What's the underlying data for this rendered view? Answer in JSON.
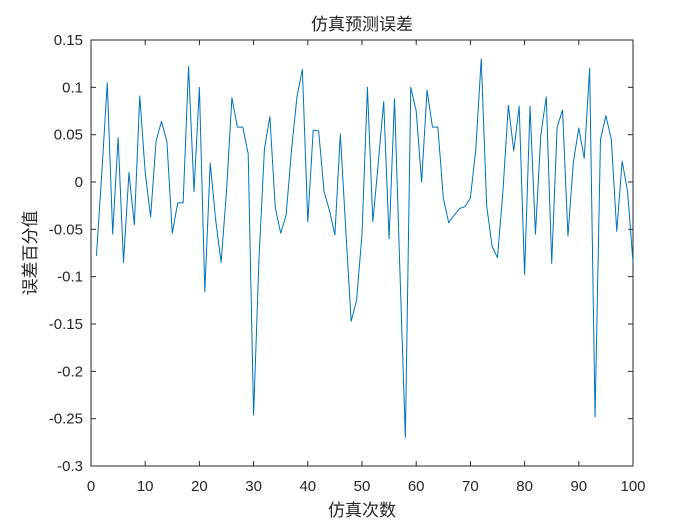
{
  "chart_data": {
    "type": "line",
    "title": "仿真预测误差",
    "xlabel": "仿真次数",
    "ylabel": "误差百分值",
    "xlim": [
      0,
      100
    ],
    "ylim": [
      -0.3,
      0.15
    ],
    "xticks": [
      0,
      10,
      20,
      30,
      40,
      50,
      60,
      70,
      80,
      90,
      100
    ],
    "yticks": [
      0.15,
      0.1,
      0.05,
      0,
      -0.05,
      -0.1,
      -0.15,
      -0.2,
      -0.25,
      -0.3
    ],
    "ytick_labels": [
      "0.15",
      "0.1",
      "0.05",
      "0",
      "-0.05",
      "-0.1",
      "-0.15",
      "-0.2",
      "-0.25",
      "-0.3"
    ],
    "xtick_labels": [
      "0",
      "10",
      "20",
      "30",
      "40",
      "50",
      "60",
      "70",
      "80",
      "90",
      "100"
    ],
    "grid": false,
    "line_color": "#0072BD",
    "series": [
      {
        "x": [
          1,
          2,
          3,
          4,
          5,
          6,
          7,
          8,
          9,
          10,
          11,
          12,
          13,
          14,
          15,
          16,
          17,
          18,
          19,
          20,
          21,
          22,
          23,
          24,
          25,
          26,
          27,
          28,
          29,
          30,
          31,
          32,
          33,
          34,
          35,
          36,
          37,
          38,
          39,
          40,
          41,
          42,
          43,
          44,
          45,
          46,
          47,
          48,
          49,
          50,
          51,
          52,
          53,
          54,
          55,
          56,
          57,
          58,
          59,
          60,
          61,
          62,
          63,
          64,
          65,
          66,
          67,
          68,
          69,
          70,
          71,
          72,
          73,
          74,
          75,
          76,
          77,
          78,
          79,
          80,
          81,
          82,
          83,
          84,
          85,
          86,
          87,
          88,
          89,
          90,
          91,
          92,
          93,
          94,
          95,
          96,
          97,
          98,
          99,
          100
        ],
        "values": [
          -0.078,
          0.01,
          0.105,
          -0.055,
          0.047,
          -0.085,
          0.01,
          -0.045,
          0.091,
          0.01,
          -0.037,
          0.043,
          0.064,
          0.043,
          -0.054,
          -0.022,
          -0.022,
          0.122,
          -0.01,
          0.1,
          -0.116,
          0.02,
          -0.04,
          -0.085,
          -0.01,
          0.089,
          0.058,
          0.058,
          0.03,
          -0.246,
          -0.08,
          0.035,
          0.069,
          -0.027,
          -0.054,
          -0.035,
          0.034,
          0.09,
          0.119,
          -0.042,
          0.055,
          0.054,
          -0.01,
          -0.03,
          -0.056,
          0.051,
          -0.05,
          -0.147,
          -0.125,
          -0.055,
          0.1,
          -0.042,
          0.02,
          0.085,
          -0.06,
          0.088,
          -0.095,
          -0.27,
          0.1,
          0.075,
          0.0,
          0.097,
          0.058,
          0.058,
          -0.017,
          -0.043,
          -0.035,
          -0.028,
          -0.026,
          -0.017,
          0.035,
          0.13,
          -0.025,
          -0.068,
          -0.08,
          -0.01,
          0.081,
          0.033,
          0.08,
          -0.098,
          0.08,
          -0.055,
          0.05,
          0.09,
          -0.086,
          0.058,
          0.076,
          -0.057,
          0.021,
          0.057,
          0.025,
          0.12,
          -0.248,
          0.045,
          0.07,
          0.045,
          -0.052,
          0.022,
          -0.01,
          -0.085
        ]
      }
    ]
  }
}
